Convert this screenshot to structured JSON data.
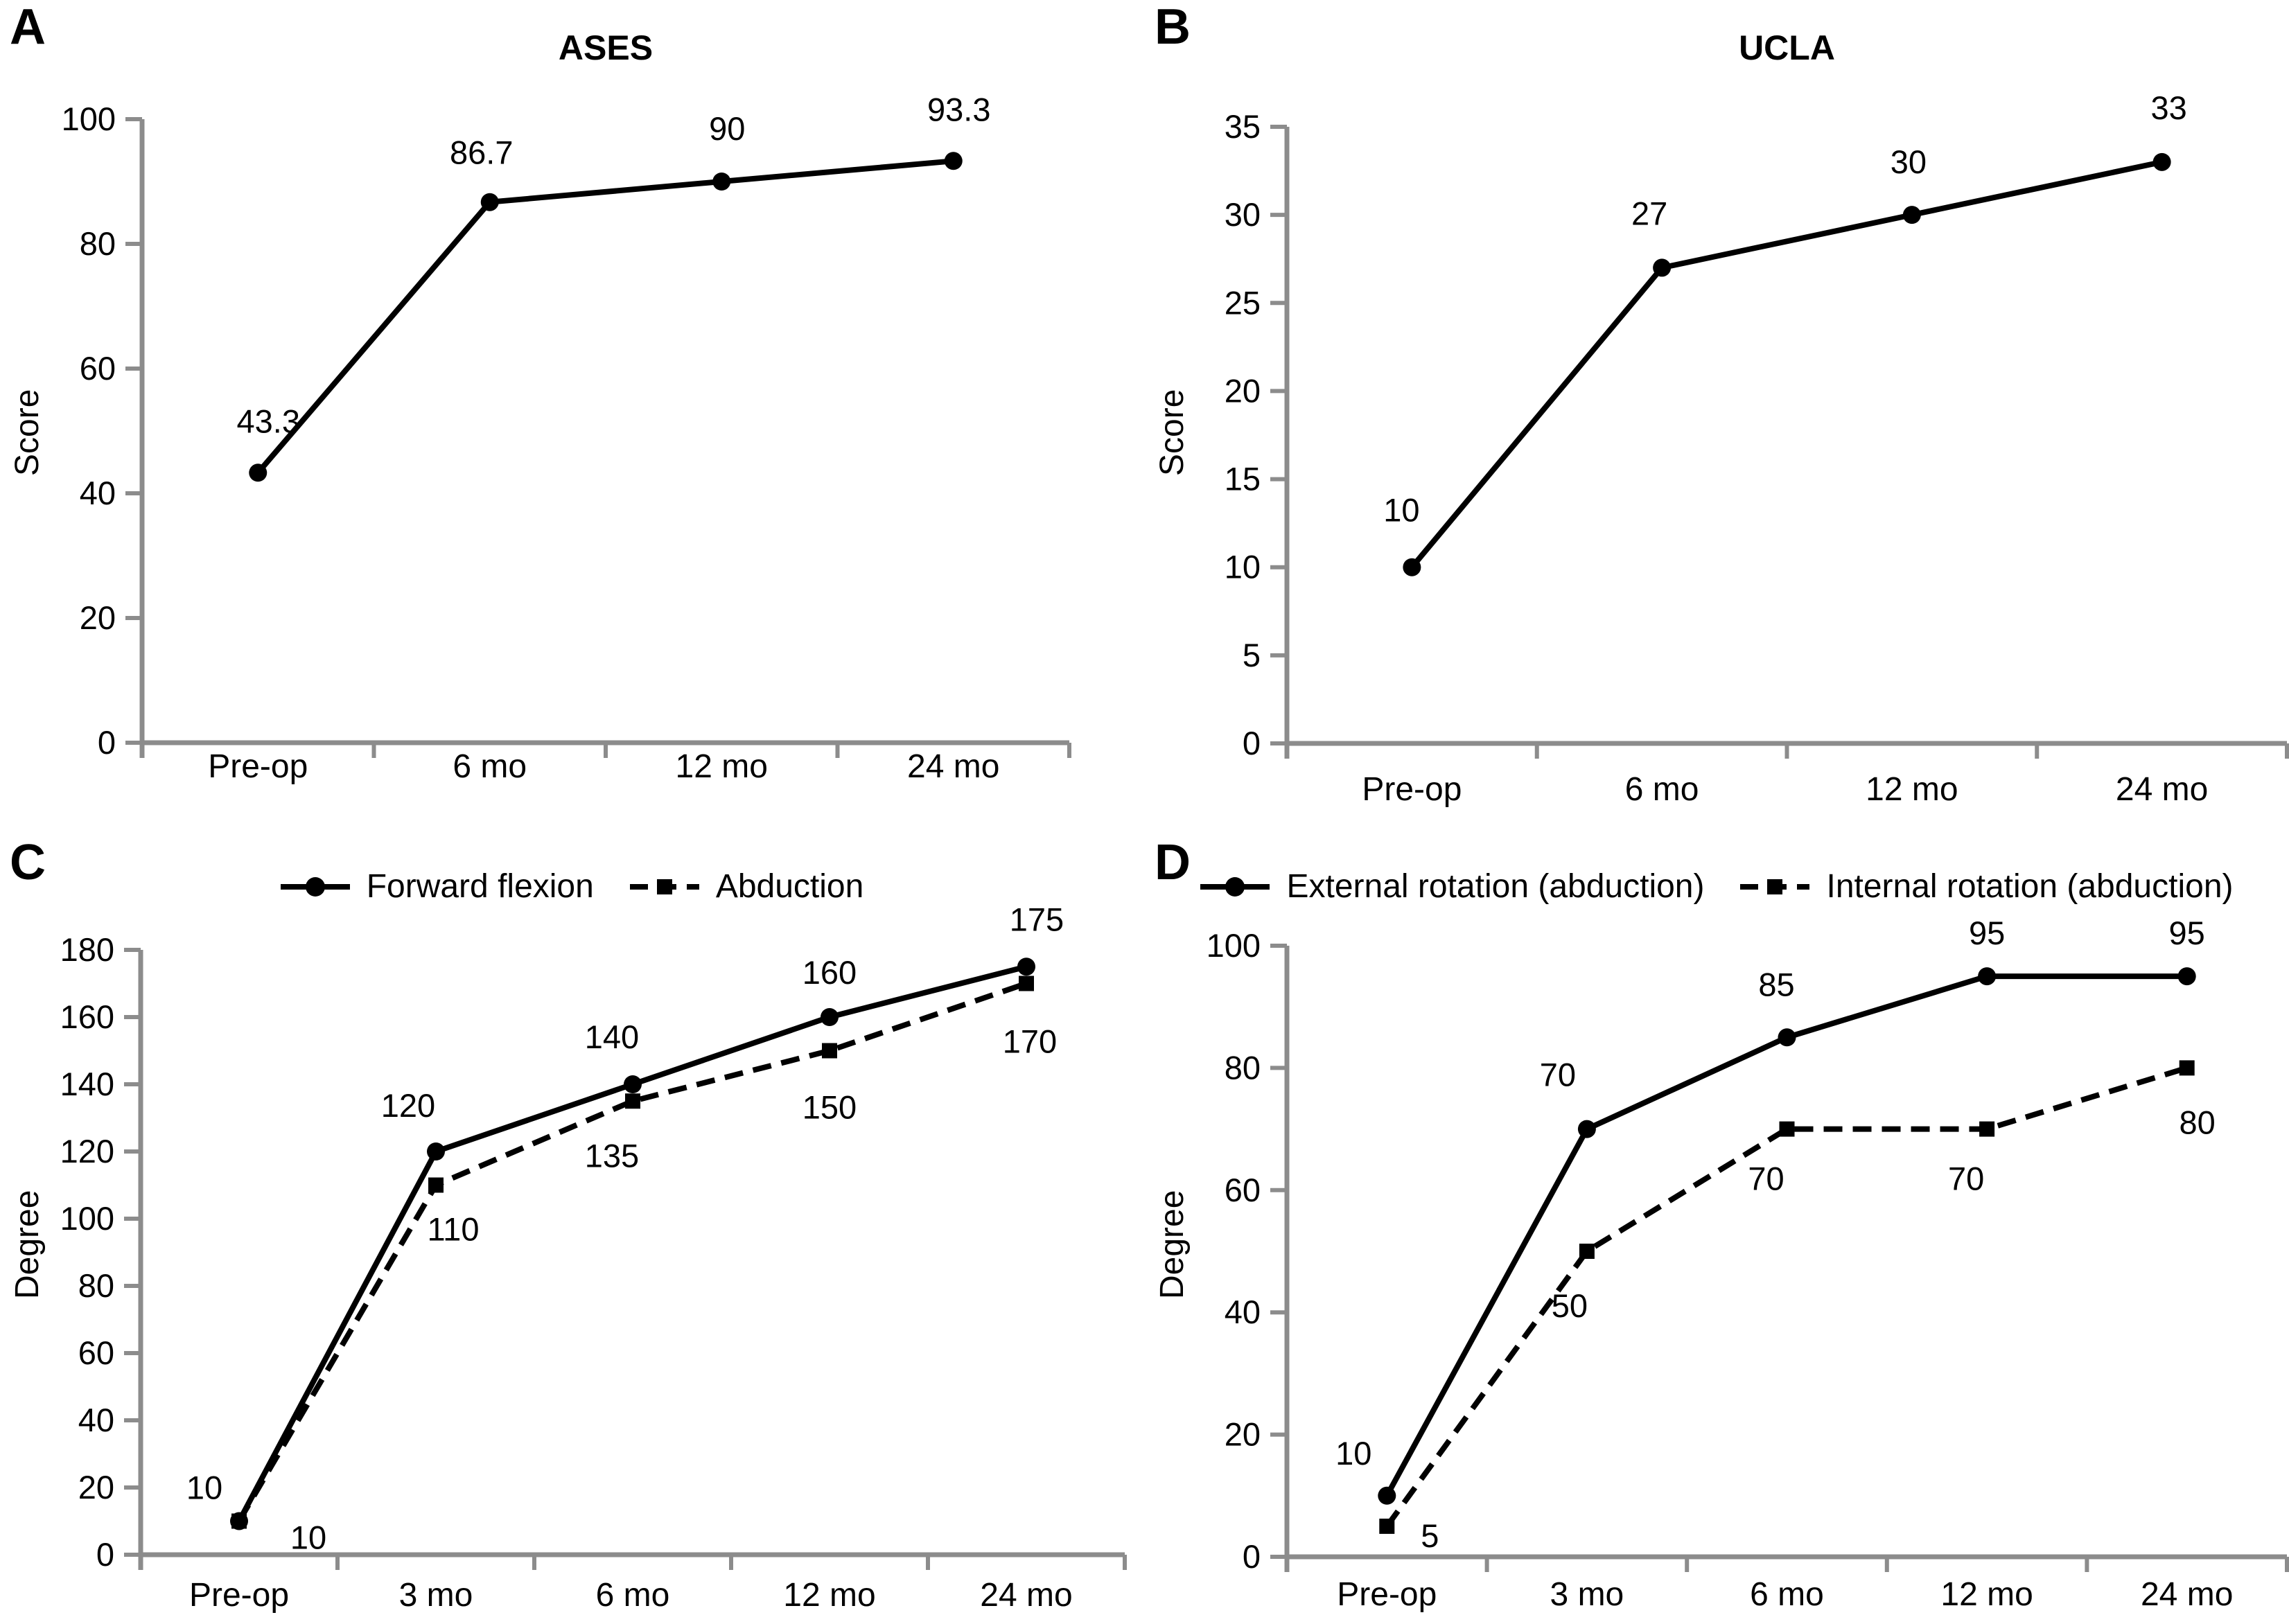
{
  "figure": {
    "background": "#ffffff",
    "colors": {
      "axis": "#8c8c8c",
      "series": "#000000",
      "text": "#000000"
    }
  },
  "chart_data": [
    {
      "panel": "A",
      "type": "line",
      "title": "ASES",
      "ylabel": "Score",
      "ylim": [
        0,
        100
      ],
      "yticks": [
        0,
        20,
        40,
        60,
        80,
        100
      ],
      "categories": [
        "Pre-op",
        "6 mo",
        "12 mo",
        "24 mo"
      ],
      "grid": false,
      "legend": false,
      "series": [
        {
          "marker": "circle",
          "line": "solid",
          "values": [
            43.3,
            86.7,
            90,
            93.3
          ],
          "point_labels": [
            "43.3",
            "86.7",
            "90",
            "93.3"
          ],
          "label_offsets": [
            [
              15,
              -58
            ],
            [
              -12,
              -55
            ],
            [
              8,
              -60
            ],
            [
              8,
              -58
            ]
          ]
        }
      ]
    },
    {
      "panel": "B",
      "type": "line",
      "title": "UCLA",
      "ylabel": "Score",
      "ylim": [
        0,
        35
      ],
      "yticks": [
        0,
        5,
        10,
        15,
        20,
        25,
        30,
        35
      ],
      "categories": [
        "Pre-op",
        "6 mo",
        "12 mo",
        "24 mo"
      ],
      "grid": false,
      "legend": false,
      "series": [
        {
          "marker": "circle",
          "line": "solid",
          "values": [
            10,
            27,
            30,
            33
          ],
          "point_labels": [
            "10",
            "27",
            "30",
            "33"
          ],
          "label_offsets": [
            [
              -15,
              -66
            ],
            [
              -18,
              -62
            ],
            [
              -5,
              -60
            ],
            [
              10,
              -62
            ]
          ]
        }
      ]
    },
    {
      "panel": "C",
      "type": "line",
      "title": null,
      "ylabel": "Degree",
      "ylim": [
        0,
        180
      ],
      "yticks": [
        0,
        20,
        40,
        60,
        80,
        100,
        120,
        140,
        160,
        180
      ],
      "categories": [
        "Pre-op",
        "3 mo",
        "6 mo",
        "12 mo",
        "24 mo"
      ],
      "grid": false,
      "legend": true,
      "legend_position": "top",
      "series": [
        {
          "name": "Forward flexion",
          "marker": "circle",
          "line": "solid",
          "values": [
            10,
            120,
            140,
            160,
            175
          ],
          "point_labels": [
            "10",
            "120",
            "140",
            "160",
            "175"
          ],
          "label_offsets": [
            [
              -50,
              -32
            ],
            [
              -40,
              -50
            ],
            [
              -30,
              -52
            ],
            [
              0,
              -48
            ],
            [
              15,
              -52
            ]
          ]
        },
        {
          "name": "Abduction",
          "marker": "square",
          "line": "dashed",
          "values": [
            10,
            110,
            135,
            150,
            170
          ],
          "point_labels": [
            "10",
            "110",
            "135",
            "150",
            "170"
          ],
          "label_offsets": [
            [
              100,
              40
            ],
            [
              25,
              80
            ],
            [
              -30,
              95
            ],
            [
              0,
              98
            ],
            [
              5,
              100
            ]
          ]
        }
      ]
    },
    {
      "panel": "D",
      "type": "line",
      "title": null,
      "ylabel": "Degree",
      "ylim": [
        0,
        100
      ],
      "yticks": [
        0,
        20,
        40,
        60,
        80,
        100
      ],
      "categories": [
        "Pre-op",
        "3 mo",
        "6 mo",
        "12 mo",
        "24 mo"
      ],
      "grid": false,
      "legend": true,
      "legend_position": "top",
      "series": [
        {
          "name": "External rotation (abduction)",
          "marker": "circle",
          "line": "solid",
          "values": [
            10,
            70,
            85,
            95,
            95
          ],
          "point_labels": [
            "10",
            "70",
            "85",
            "95",
            "95"
          ],
          "label_offsets": [
            [
              -48,
              -45
            ],
            [
              -42,
              -62
            ],
            [
              -15,
              -60
            ],
            [
              0,
              -46
            ],
            [
              0,
              -46
            ]
          ]
        },
        {
          "name": "Internal rotation (abduction)",
          "marker": "square",
          "line": "dashed",
          "values": [
            5,
            50,
            70,
            70,
            80
          ],
          "point_labels": [
            "5",
            "50",
            "70",
            "70",
            "80"
          ],
          "label_offsets": [
            [
              62,
              30
            ],
            [
              -25,
              95
            ],
            [
              -30,
              88
            ],
            [
              -30,
              88
            ],
            [
              15,
              95
            ]
          ]
        }
      ]
    }
  ]
}
